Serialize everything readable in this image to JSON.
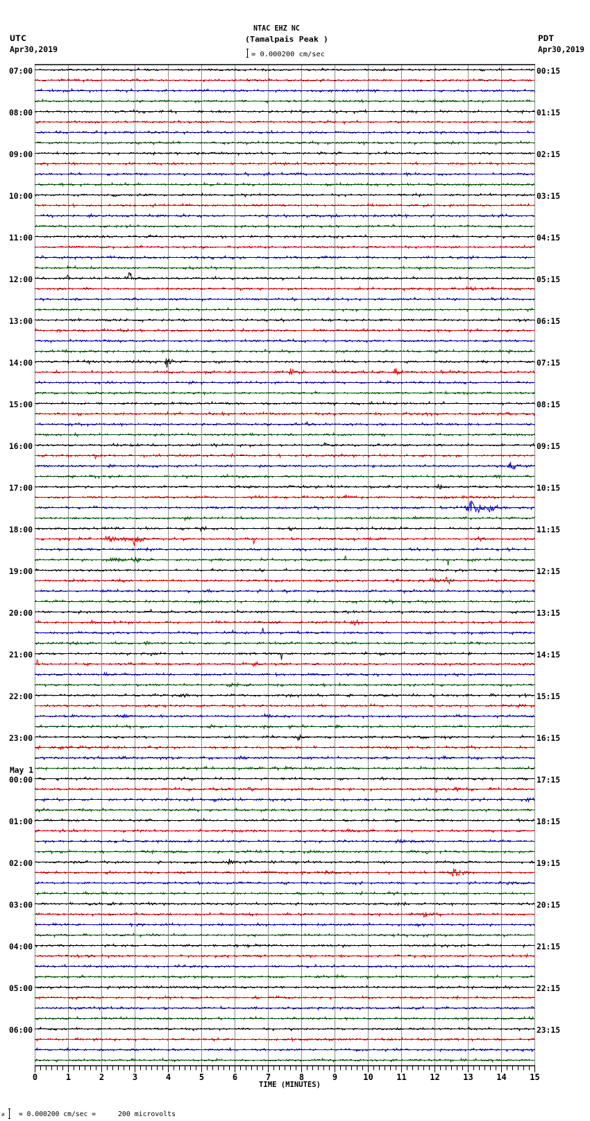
{
  "header": {
    "station": "NTAC EHZ NC",
    "site": "(Tamalpais Peak )",
    "scale": "= 0.000200 cm/sec",
    "left_tz": "UTC",
    "left_date": "Apr30,2019",
    "right_tz": "PDT",
    "right_date": "Apr30,2019"
  },
  "footer": {
    "prefix_glyph": "ᴎ",
    "scale": "= 0.000200 cm/sec =",
    "microvolts": "200 microvolts"
  },
  "colors": {
    "trace_colors": [
      "#000000",
      "#ff0000",
      "#0000c8",
      "#006400"
    ],
    "grid": "#8c8c8c",
    "frame": "#000000",
    "background": "#ffffff"
  },
  "chart_data": {
    "type": "line",
    "subtype": "helicorder-seismogram",
    "title": "NTAC EHZ NC (Tamalpais Peak )",
    "xlabel": "TIME (MINUTES)",
    "ylabel_left": "UTC",
    "ylabel_right": "PDT",
    "xlim": [
      0,
      15
    ],
    "x_ticks": [
      "0",
      "1",
      "2",
      "3",
      "4",
      "5",
      "6",
      "7",
      "8",
      "9",
      "10",
      "11",
      "12",
      "13",
      "14",
      "15"
    ],
    "minor_tick_seconds": 10,
    "grid": true,
    "traces_per_hour": 4,
    "trace_minutes": 15,
    "trace_count": 96,
    "amplitude_scale": "0.000200 cm/sec = 200 microvolts",
    "left_hour_labels": [
      "07:00",
      "08:00",
      "09:00",
      "10:00",
      "11:00",
      "12:00",
      "13:00",
      "14:00",
      "15:00",
      "16:00",
      "17:00",
      "18:00",
      "19:00",
      "20:00",
      "21:00",
      "22:00",
      "23:00",
      "00:00",
      "01:00",
      "02:00",
      "03:00",
      "04:00",
      "05:00",
      "06:00"
    ],
    "right_hour_labels": [
      "00:15",
      "01:15",
      "02:15",
      "03:15",
      "04:15",
      "05:15",
      "06:15",
      "07:15",
      "08:15",
      "09:15",
      "10:15",
      "11:15",
      "12:15",
      "13:15",
      "14:15",
      "15:15",
      "16:15",
      "17:15",
      "18:15",
      "19:15",
      "20:15",
      "21:15",
      "22:15",
      "23:15"
    ],
    "date_change": {
      "hour_index": 17,
      "text": "May 1"
    },
    "events": [
      {
        "trace": 20,
        "minute": 0.94,
        "amp": 4,
        "dur": 0.2
      },
      {
        "trace": 20,
        "minute": 2.78,
        "amp": 11,
        "dur": 0.3
      },
      {
        "trace": 24,
        "minute": 4.45,
        "amp": 2.5,
        "dur": 0.3
      },
      {
        "trace": 24,
        "minute": 7.35,
        "amp": 2.5,
        "dur": 0.25
      },
      {
        "trace": 28,
        "minute": 1.55,
        "amp": 4,
        "dur": 0.2
      },
      {
        "trace": 28,
        "minute": 2.88,
        "amp": 2,
        "dur": 0.15
      },
      {
        "trace": 28,
        "minute": 3.9,
        "amp": 11,
        "dur": 0.3
      },
      {
        "trace": 29,
        "minute": 7.62,
        "amp": 6,
        "dur": 0.25
      },
      {
        "trace": 29,
        "minute": 10.25,
        "amp": 3,
        "dur": 0.2
      },
      {
        "trace": 29,
        "minute": 10.75,
        "amp": 8,
        "dur": 0.35
      },
      {
        "trace": 29,
        "minute": 12.15,
        "amp": 3,
        "dur": 0.35
      },
      {
        "trace": 30,
        "minute": 4.7,
        "amp": 2,
        "dur": 0.2
      },
      {
        "trace": 33,
        "minute": 14.1,
        "amp": 3.5,
        "dur": 0.3
      },
      {
        "trace": 34,
        "minute": 8.1,
        "amp": 4,
        "dur": 0.3
      },
      {
        "trace": 36,
        "minute": 2.88,
        "amp": 2,
        "dur": 0.1
      },
      {
        "trace": 36,
        "minute": 8.65,
        "amp": 3,
        "dur": 0.3
      },
      {
        "trace": 37,
        "minute": 1.82,
        "amp": 5,
        "dur": 0.04
      },
      {
        "trace": 38,
        "minute": 2.17,
        "amp": 4,
        "dur": 0.25
      },
      {
        "trace": 38,
        "minute": 14.2,
        "amp": 7,
        "dur": 0.4
      },
      {
        "trace": 39,
        "minute": 4.6,
        "amp": 2,
        "dur": 0.2
      },
      {
        "trace": 39,
        "minute": 13.8,
        "amp": 3,
        "dur": 0.3
      },
      {
        "trace": 40,
        "minute": 12.05,
        "amp": 5,
        "dur": 0.3
      },
      {
        "trace": 41,
        "minute": 9.25,
        "amp": 5,
        "dur": 0.35
      },
      {
        "trace": 41,
        "minute": 12.15,
        "amp": 3,
        "dur": 0.5
      },
      {
        "trace": 41,
        "minute": 14.4,
        "amp": 2.5,
        "dur": 0.3
      },
      {
        "trace": 42,
        "minute": 12.93,
        "amp": 14,
        "dur": 0.8
      },
      {
        "trace": 42,
        "minute": 13.55,
        "amp": 7,
        "dur": 0.45
      },
      {
        "trace": 43,
        "minute": 4.45,
        "amp": 4,
        "dur": 0.4
      },
      {
        "trace": 43,
        "minute": 11.5,
        "amp": 2.5,
        "dur": 0.3
      },
      {
        "trace": 43,
        "minute": 14.2,
        "amp": 2.5,
        "dur": 0.3
      },
      {
        "trace": 44,
        "minute": 4.93,
        "amp": 4,
        "dur": 0.25
      },
      {
        "trace": 44,
        "minute": 7.6,
        "amp": 4,
        "dur": 0.35
      },
      {
        "trace": 45,
        "minute": 0.7,
        "amp": 3.5,
        "dur": 0.4
      },
      {
        "trace": 45,
        "minute": 2.0,
        "amp": 5,
        "dur": 1.3
      },
      {
        "trace": 45,
        "minute": 2.85,
        "amp": 14,
        "dur": 0.5
      },
      {
        "trace": 45,
        "minute": 4.9,
        "amp": 2,
        "dur": 0.1
      },
      {
        "trace": 45,
        "minute": 6.57,
        "amp": 7,
        "dur": 0.04
      },
      {
        "trace": 45,
        "minute": 10.25,
        "amp": 3,
        "dur": 0.2
      },
      {
        "trace": 45,
        "minute": 13.2,
        "amp": 4,
        "dur": 0.4
      },
      {
        "trace": 46,
        "minute": 0.69,
        "amp": 3.5,
        "dur": 0.1
      },
      {
        "trace": 46,
        "minute": 1.55,
        "amp": 2,
        "dur": 0.2
      },
      {
        "trace": 46,
        "minute": 8.19,
        "amp": 2.5,
        "dur": 0.1
      },
      {
        "trace": 47,
        "minute": 2.05,
        "amp": 3,
        "dur": 1.4
      },
      {
        "trace": 47,
        "minute": 2.95,
        "amp": 6,
        "dur": 0.4
      },
      {
        "trace": 47,
        "minute": 9.32,
        "amp": 6,
        "dur": 0.05
      },
      {
        "trace": 47,
        "minute": 11.1,
        "amp": 2.5,
        "dur": 0.4
      },
      {
        "trace": 47,
        "minute": 12.4,
        "amp": 8,
        "dur": 0.03,
        "sign": -1
      },
      {
        "trace": 48,
        "minute": 14.5,
        "amp": 3,
        "dur": 0.3
      },
      {
        "trace": 49,
        "minute": 11.8,
        "amp": 5,
        "dur": 0.6
      },
      {
        "trace": 49,
        "minute": 12.3,
        "amp": 7,
        "dur": 0.3
      },
      {
        "trace": 50,
        "minute": 2.0,
        "amp": 3.5,
        "dur": 0.3
      },
      {
        "trace": 50,
        "minute": 5.1,
        "amp": 2,
        "dur": 0.3
      },
      {
        "trace": 50,
        "minute": 8.68,
        "amp": 2,
        "dur": 0.3
      },
      {
        "trace": 50,
        "minute": 11.8,
        "amp": 2,
        "dur": 0.3
      },
      {
        "trace": 51,
        "minute": 4.9,
        "amp": 3.5,
        "dur": 0.3
      },
      {
        "trace": 51,
        "minute": 7.16,
        "amp": 2.5,
        "dur": 0.2
      },
      {
        "trace": 51,
        "minute": 10.4,
        "amp": 2.5,
        "dur": 0.3
      },
      {
        "trace": 51,
        "minute": 11.5,
        "amp": 2.5,
        "dur": 0.5
      },
      {
        "trace": 52,
        "minute": 3.42,
        "amp": 3.5,
        "dur": 0.2
      },
      {
        "trace": 53,
        "minute": 1.65,
        "amp": 3,
        "dur": 0.2
      },
      {
        "trace": 53,
        "minute": 2.78,
        "amp": 2.5,
        "dur": 0.2
      },
      {
        "trace": 53,
        "minute": 6.57,
        "amp": 2.5,
        "dur": 0.3
      },
      {
        "trace": 53,
        "minute": 7.16,
        "amp": 3.5,
        "dur": 0.3
      },
      {
        "trace": 53,
        "minute": 9.45,
        "amp": 4,
        "dur": 0.6
      },
      {
        "trace": 54,
        "minute": 5.88,
        "amp": 3,
        "dur": 0.3
      },
      {
        "trace": 54,
        "minute": 6.84,
        "amp": 7,
        "dur": 0.04,
        "sign": 1
      },
      {
        "trace": 55,
        "minute": 1.16,
        "amp": 3,
        "dur": 0.4
      },
      {
        "trace": 55,
        "minute": 3.27,
        "amp": 3,
        "dur": 0.4
      },
      {
        "trace": 55,
        "minute": 9.76,
        "amp": 3,
        "dur": 0.3
      },
      {
        "trace": 55,
        "minute": 13.25,
        "amp": 3.5,
        "dur": 0.2
      },
      {
        "trace": 56,
        "minute": 3.18,
        "amp": 3,
        "dur": 0.3
      },
      {
        "trace": 56,
        "minute": 7.4,
        "amp": 8,
        "dur": 0.04,
        "sign": -1
      },
      {
        "trace": 56,
        "minute": 10.3,
        "amp": 3,
        "dur": 0.5
      },
      {
        "trace": 57,
        "minute": 0.06,
        "amp": 7,
        "dur": 0.04
      },
      {
        "trace": 57,
        "minute": 6.47,
        "amp": 3,
        "dur": 0.5
      },
      {
        "trace": 58,
        "minute": 2.05,
        "amp": 3.5,
        "dur": 0.3
      },
      {
        "trace": 58,
        "minute": 2.68,
        "amp": 3.5,
        "dur": 0.15
      },
      {
        "trace": 58,
        "minute": 8.24,
        "amp": 3,
        "dur": 0.3
      },
      {
        "trace": 59,
        "minute": 5.8,
        "amp": 4,
        "dur": 0.4
      },
      {
        "trace": 60,
        "minute": 4.3,
        "amp": 2.5,
        "dur": 0.6
      },
      {
        "trace": 60,
        "minute": 7.55,
        "amp": 2.5,
        "dur": 0.4
      },
      {
        "trace": 60,
        "minute": 9.32,
        "amp": 2.5,
        "dur": 0.3
      },
      {
        "trace": 60,
        "minute": 10.4,
        "amp": 2.5,
        "dur": 0.5
      },
      {
        "trace": 61,
        "minute": 14.45,
        "amp": 3.5,
        "dur": 0.4
      },
      {
        "trace": 62,
        "minute": 2.6,
        "amp": 3.5,
        "dur": 0.4
      },
      {
        "trace": 62,
        "minute": 3.72,
        "amp": 3,
        "dur": 0.2
      },
      {
        "trace": 62,
        "minute": 6.86,
        "amp": 3,
        "dur": 0.3
      },
      {
        "trace": 62,
        "minute": 11.09,
        "amp": 3,
        "dur": 0.2
      },
      {
        "trace": 62,
        "minute": 12.6,
        "amp": 2.5,
        "dur": 0.3
      },
      {
        "trace": 63,
        "minute": 5.1,
        "amp": 4,
        "dur": 0.6
      },
      {
        "trace": 63,
        "minute": 6.8,
        "amp": 4,
        "dur": 0.4
      },
      {
        "trace": 63,
        "minute": 7.55,
        "amp": 5,
        "dur": 0.3
      },
      {
        "trace": 63,
        "minute": 9.0,
        "amp": 3.5,
        "dur": 0.3
      },
      {
        "trace": 64,
        "minute": 7.85,
        "amp": 5,
        "dur": 0.3
      },
      {
        "trace": 65,
        "minute": 0.72,
        "amp": 3.5,
        "dur": 0.3
      },
      {
        "trace": 66,
        "minute": 2.44,
        "amp": 3,
        "dur": 0.6
      },
      {
        "trace": 66,
        "minute": 6.05,
        "amp": 4,
        "dur": 0.5
      },
      {
        "trace": 66,
        "minute": 12.2,
        "amp": 3.5,
        "dur": 0.4
      },
      {
        "trace": 67,
        "minute": 7.45,
        "amp": 3,
        "dur": 0.5
      },
      {
        "trace": 68,
        "minute": 10.9,
        "amp": 2,
        "dur": 0.3
      },
      {
        "trace": 68,
        "minute": 12.37,
        "amp": 3,
        "dur": 0.3
      },
      {
        "trace": 69,
        "minute": 6.35,
        "amp": 3,
        "dur": 0.5
      },
      {
        "trace": 69,
        "minute": 11.98,
        "amp": 4,
        "dur": 0.3
      },
      {
        "trace": 69,
        "minute": 12.55,
        "amp": 3,
        "dur": 0.6
      },
      {
        "trace": 69,
        "minute": 14.34,
        "amp": 2,
        "dur": 0.3
      },
      {
        "trace": 70,
        "minute": 5.32,
        "amp": 4,
        "dur": 0.3
      },
      {
        "trace": 70,
        "minute": 14.7,
        "amp": 3.5,
        "dur": 0.5
      },
      {
        "trace": 71,
        "minute": 0.03,
        "amp": 4,
        "dur": 0.15
      },
      {
        "trace": 71,
        "minute": 12.76,
        "amp": 2,
        "dur": 0.4
      },
      {
        "trace": 72,
        "minute": 0.28,
        "amp": 2.5,
        "dur": 0.4
      },
      {
        "trace": 73,
        "minute": 9.3,
        "amp": 3,
        "dur": 0.6
      },
      {
        "trace": 74,
        "minute": 10.7,
        "amp": 3,
        "dur": 1.0
      },
      {
        "trace": 75,
        "minute": 11.24,
        "amp": 3,
        "dur": 0.3
      },
      {
        "trace": 75,
        "minute": 11.68,
        "amp": 5,
        "dur": 0.2
      },
      {
        "trace": 76,
        "minute": 3.67,
        "amp": 3,
        "dur": 0.1
      },
      {
        "trace": 76,
        "minute": 5.75,
        "amp": 4,
        "dur": 0.4
      },
      {
        "trace": 77,
        "minute": 8.65,
        "amp": 3,
        "dur": 0.5
      },
      {
        "trace": 77,
        "minute": 12.45,
        "amp": 8,
        "dur": 0.6
      },
      {
        "trace": 78,
        "minute": 14.1,
        "amp": 2.5,
        "dur": 0.5
      },
      {
        "trace": 81,
        "minute": 11.6,
        "amp": 5,
        "dur": 0.5
      }
    ]
  }
}
